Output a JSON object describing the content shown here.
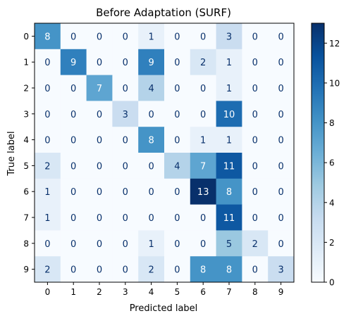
{
  "chart_data": {
    "type": "heatmap",
    "title": "Before Adaptation (SURF)",
    "xlabel": "Predicted label",
    "ylabel": "True label",
    "x_categories": [
      "0",
      "1",
      "2",
      "3",
      "4",
      "5",
      "6",
      "7",
      "8",
      "9"
    ],
    "y_categories": [
      "0",
      "1",
      "2",
      "3",
      "4",
      "5",
      "6",
      "7",
      "8",
      "9"
    ],
    "values": [
      [
        8,
        0,
        0,
        0,
        1,
        0,
        0,
        3,
        0,
        0
      ],
      [
        0,
        9,
        0,
        0,
        9,
        0,
        2,
        1,
        0,
        0
      ],
      [
        0,
        0,
        7,
        0,
        4,
        0,
        0,
        1,
        0,
        0
      ],
      [
        0,
        0,
        0,
        3,
        0,
        0,
        0,
        10,
        0,
        0
      ],
      [
        0,
        0,
        0,
        0,
        8,
        0,
        1,
        1,
        0,
        0
      ],
      [
        2,
        0,
        0,
        0,
        0,
        4,
        7,
        11,
        0,
        0
      ],
      [
        1,
        0,
        0,
        0,
        0,
        0,
        13,
        8,
        0,
        0
      ],
      [
        1,
        0,
        0,
        0,
        0,
        0,
        0,
        11,
        0,
        0
      ],
      [
        0,
        0,
        0,
        0,
        1,
        0,
        0,
        5,
        2,
        0
      ],
      [
        2,
        0,
        0,
        0,
        2,
        0,
        8,
        8,
        0,
        3
      ]
    ],
    "colormap": "Blues",
    "value_range": [
      0,
      13
    ],
    "colorbar_ticks": [
      0,
      2,
      4,
      6,
      8,
      10,
      12
    ]
  }
}
